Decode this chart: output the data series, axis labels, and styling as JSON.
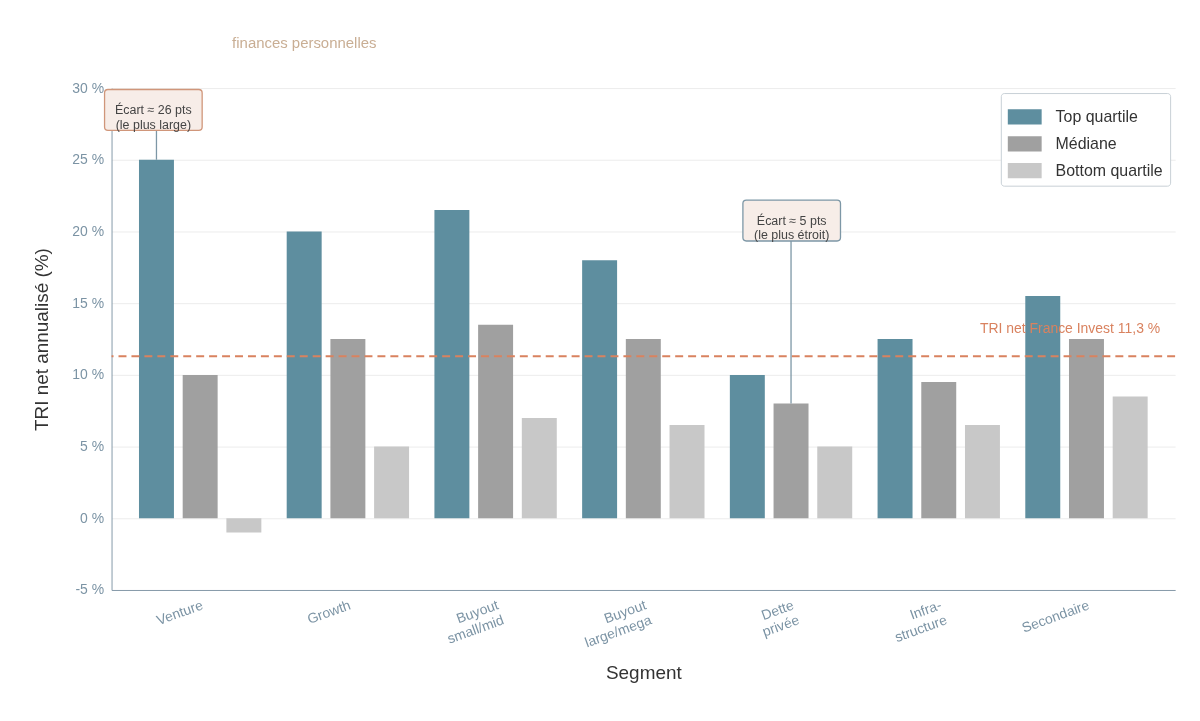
{
  "chart_data": {
    "type": "bar",
    "subtitle": "finances personnelles",
    "xlabel": "Segment",
    "ylabel": "TRI net annualisé (%)",
    "categories": [
      "Venture",
      "Growth",
      "Buyout\nsmall/mid",
      "Buyout\nlarge/mega",
      "Dette\nprivée",
      "Infra-\nstructure",
      "Secondaire"
    ],
    "series": [
      {
        "name": "Top quartile",
        "color": "#5e8e9f",
        "values": [
          25,
          20,
          21.5,
          18,
          10,
          12.5,
          15.5
        ]
      },
      {
        "name": "Médiane",
        "color": "#a0a0a0",
        "values": [
          10,
          12.5,
          13.5,
          12.5,
          8,
          9.5,
          12.5
        ]
      },
      {
        "name": "Bottom quartile",
        "color": "#c8c8c8",
        "values": [
          -1,
          5,
          7,
          6.5,
          5,
          6.5,
          8.5
        ]
      }
    ],
    "ylim": [
      -5,
      30
    ],
    "yticks": [
      {
        "value": -5,
        "label": "-5 %"
      },
      {
        "value": 0,
        "label": "0 %"
      },
      {
        "value": 5,
        "label": "5 %"
      },
      {
        "value": 10,
        "label": "10 %"
      },
      {
        "value": 15,
        "label": "15 %"
      },
      {
        "value": 20,
        "label": "20 %"
      },
      {
        "value": 25,
        "label": "25 %"
      },
      {
        "value": 30,
        "label": "30 %"
      }
    ],
    "ref_lines": [
      {
        "axis": "y",
        "value": 11.3,
        "label": "TRI net France Invest  11,3 %",
        "color": "#d9825f",
        "line_style": "dashed"
      }
    ],
    "annotations": [
      {
        "text": "Écart ≈ 26 pts\n(le plus large)",
        "y": 25
      },
      {
        "text": "Écart ≈ 5 pts\n(le plus étroit)",
        "y": 8
      }
    ],
    "grid": "y",
    "legend": "top right"
  }
}
